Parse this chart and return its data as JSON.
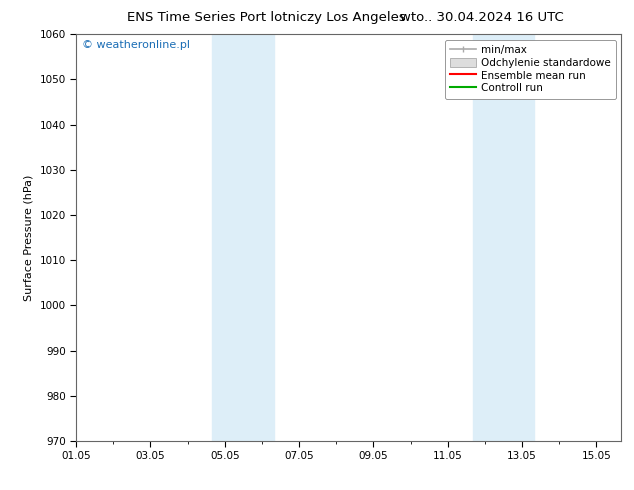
{
  "title_left": "ENS Time Series Port lotniczy Los Angeles",
  "title_right": "wto.. 30.04.2024 16 UTC",
  "ylabel": "Surface Pressure (hPa)",
  "ylim": [
    970,
    1060
  ],
  "yticks": [
    970,
    980,
    990,
    1000,
    1010,
    1020,
    1030,
    1040,
    1050,
    1060
  ],
  "xtick_labels": [
    "01.05",
    "03.05",
    "05.05",
    "07.05",
    "09.05",
    "11.05",
    "13.05",
    "15.05"
  ],
  "xtick_positions": [
    0,
    2,
    4,
    6,
    8,
    10,
    12,
    14
  ],
  "xlim": [
    0,
    14.67
  ],
  "blue_bands": [
    {
      "start": 3.67,
      "end": 5.33
    },
    {
      "start": 10.67,
      "end": 12.33
    }
  ],
  "blue_band_color": "#ddeef8",
  "watermark": "© weatheronline.pl",
  "watermark_color": "#1a6db5",
  "legend_entries": [
    "min/max",
    "Odchylenie standardowe",
    "Ensemble mean run",
    "Controll run"
  ],
  "legend_line_color_minmax": "#aaaaaa",
  "legend_fill_color_std": "#dddddd",
  "legend_line_color_ens": "#ff0000",
  "legend_line_color_ctrl": "#00aa00",
  "bg_color": "#ffffff",
  "plot_bg_color": "#ffffff",
  "title_fontsize": 9.5,
  "axis_label_fontsize": 8,
  "tick_fontsize": 7.5,
  "legend_fontsize": 7.5,
  "watermark_fontsize": 8
}
